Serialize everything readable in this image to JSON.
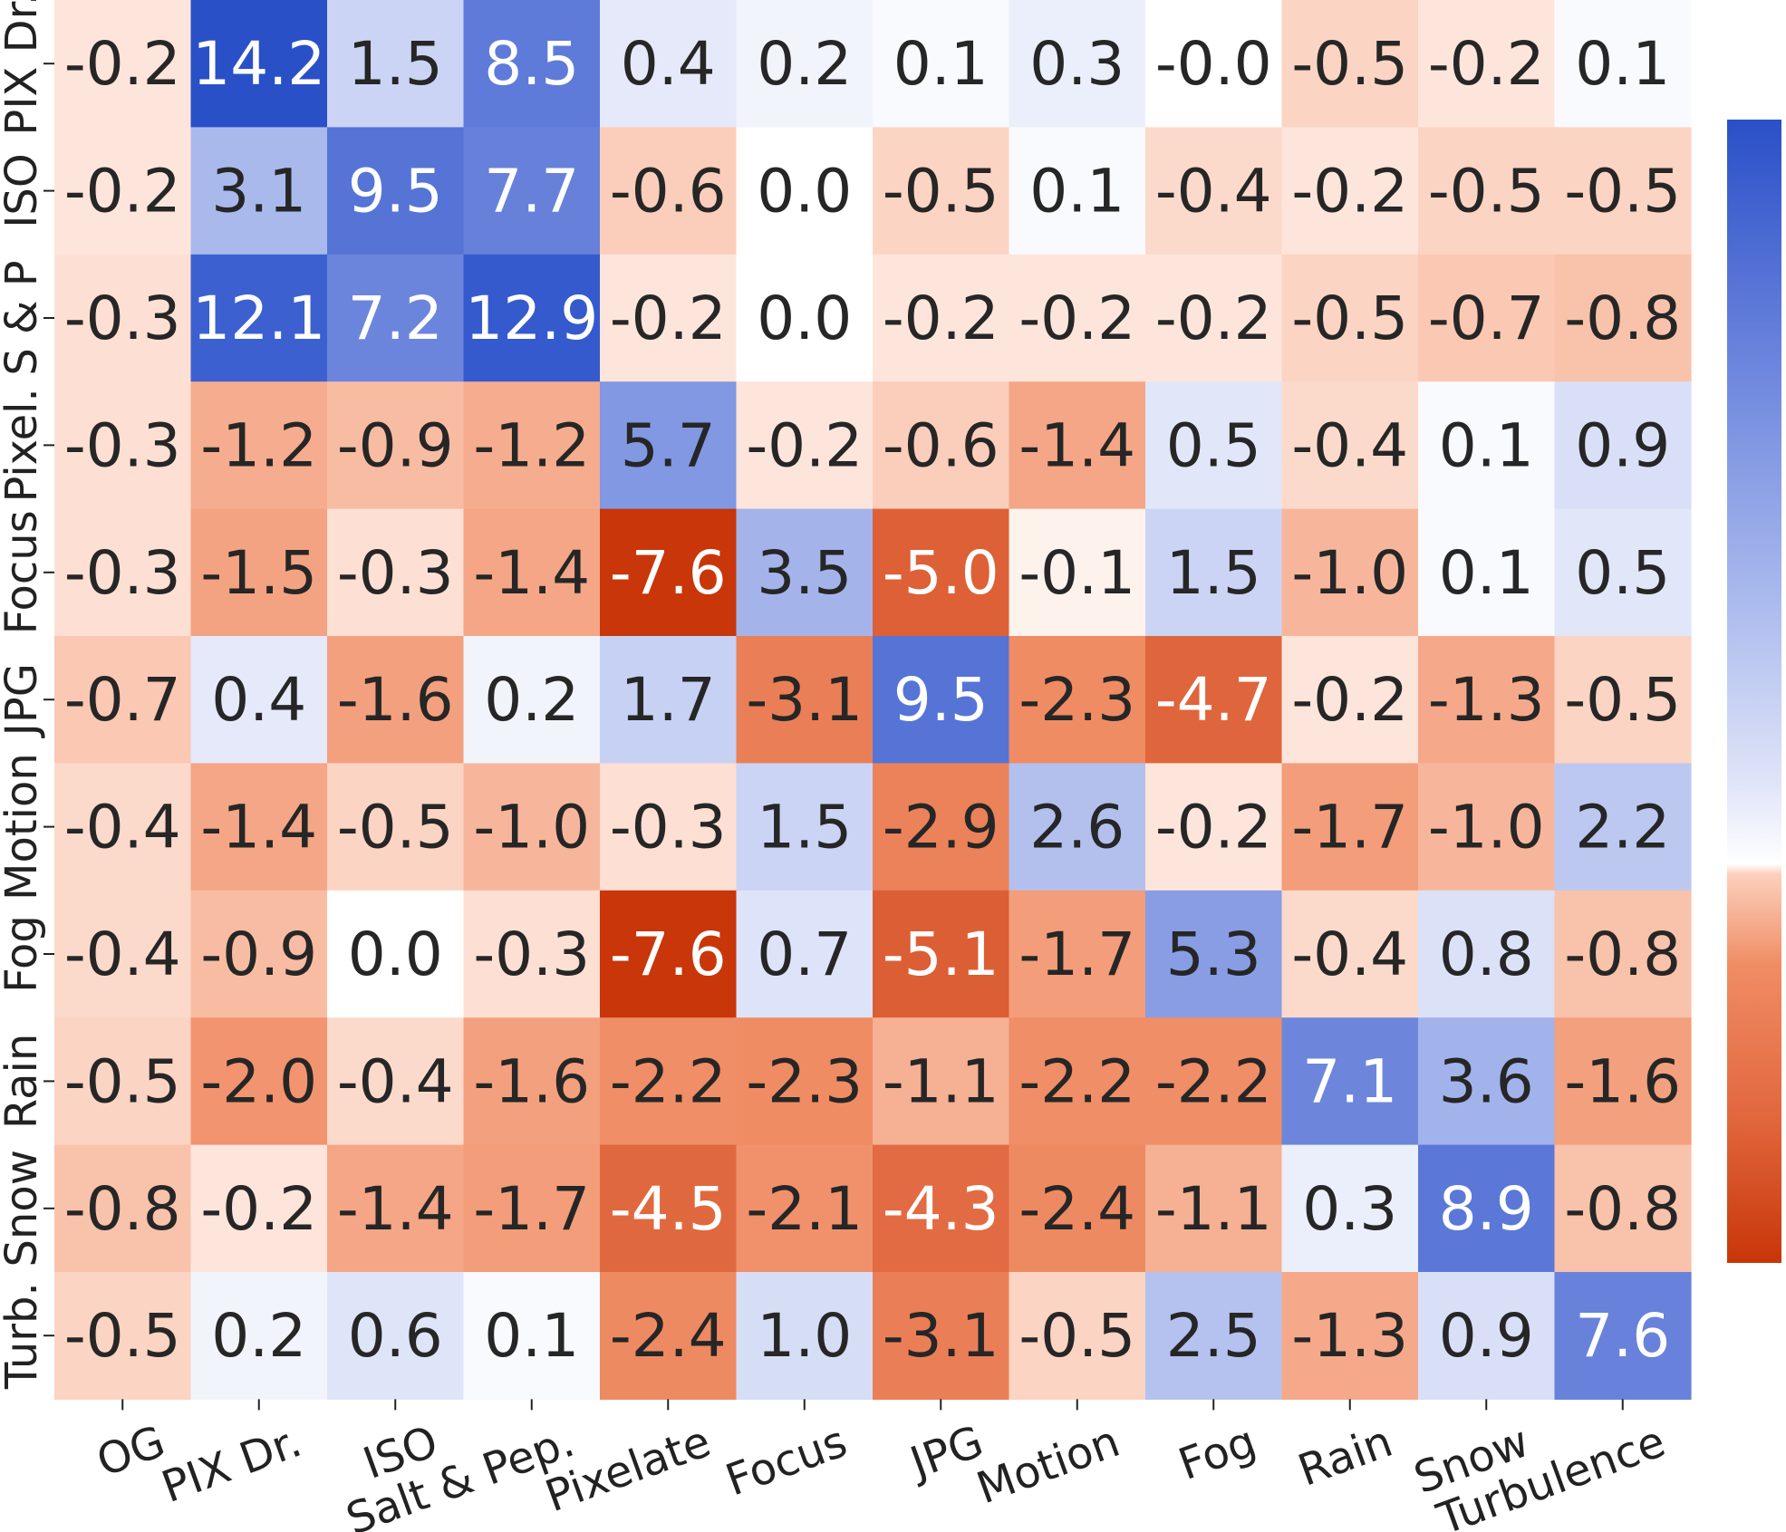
{
  "chart_data": {
    "type": "heatmap",
    "title": "",
    "xlabel": "",
    "ylabel": "",
    "x_categories": [
      "OG",
      "PIX Dr.",
      "ISO",
      "Salt & Pep.",
      "Pixelate",
      "Focus",
      "JPG",
      "Motion",
      "Fog",
      "Rain",
      "Snow",
      "Turbulence"
    ],
    "y_categories": [
      "PIX Dr.",
      "ISO",
      "S & P",
      "Pixel.",
      "Focus",
      "JPG",
      "Motion",
      "Fog",
      "Rain",
      "Snow",
      "Turb."
    ],
    "values": [
      [
        -0.2,
        14.2,
        1.5,
        8.5,
        0.4,
        0.2,
        0.1,
        0.3,
        -0.0,
        -0.5,
        -0.2,
        0.1
      ],
      [
        -0.2,
        3.1,
        9.5,
        7.7,
        -0.6,
        0.0,
        -0.5,
        0.1,
        -0.4,
        -0.2,
        -0.5,
        -0.5
      ],
      [
        -0.3,
        12.1,
        7.2,
        12.9,
        -0.2,
        0.0,
        -0.2,
        -0.2,
        -0.2,
        -0.5,
        -0.7,
        -0.8
      ],
      [
        -0.3,
        -1.2,
        -0.9,
        -1.2,
        5.7,
        -0.2,
        -0.6,
        -1.4,
        0.5,
        -0.4,
        0.1,
        0.9
      ],
      [
        -0.3,
        -1.5,
        -0.3,
        -1.4,
        -7.6,
        3.5,
        -5.0,
        -0.1,
        1.5,
        -1.0,
        0.1,
        0.5
      ],
      [
        -0.7,
        0.4,
        -1.6,
        0.2,
        1.7,
        -3.1,
        9.5,
        -2.3,
        -4.7,
        -0.2,
        -1.3,
        -0.5
      ],
      [
        -0.4,
        -1.4,
        -0.5,
        -1.0,
        -0.3,
        1.5,
        -2.9,
        2.6,
        -0.2,
        -1.7,
        -1.0,
        2.2
      ],
      [
        -0.4,
        -0.9,
        0.0,
        -0.3,
        -7.6,
        0.7,
        -5.1,
        -1.7,
        5.3,
        -0.4,
        0.8,
        -0.8
      ],
      [
        -0.5,
        -2.0,
        -0.4,
        -1.6,
        -2.2,
        -2.3,
        -1.1,
        -2.2,
        -2.2,
        7.1,
        3.6,
        -1.6
      ],
      [
        -0.8,
        -0.2,
        -1.4,
        -1.7,
        -4.5,
        -2.1,
        -4.3,
        -2.4,
        -1.1,
        0.3,
        8.9,
        -0.8
      ],
      [
        -0.5,
        0.2,
        0.6,
        0.1,
        -2.4,
        1.0,
        -3.1,
        -0.5,
        2.5,
        -1.3,
        0.9,
        7.6
      ]
    ],
    "value_labels": [
      [
        "-0.2",
        "14.2",
        "1.5",
        "8.5",
        "0.4",
        "0.2",
        "0.1",
        "0.3",
        "-0.0",
        "-0.5",
        "-0.2",
        "0.1"
      ],
      [
        "-0.2",
        "3.1",
        "9.5",
        "7.7",
        "-0.6",
        "0.0",
        "-0.5",
        "0.1",
        "-0.4",
        "-0.2",
        "-0.5",
        "-0.5"
      ],
      [
        "-0.3",
        "12.1",
        "7.2",
        "12.9",
        "-0.2",
        "0.0",
        "-0.2",
        "-0.2",
        "-0.2",
        "-0.5",
        "-0.7",
        "-0.8"
      ],
      [
        "-0.3",
        "-1.2",
        "-0.9",
        "-1.2",
        "5.7",
        "-0.2",
        "-0.6",
        "-1.4",
        "0.5",
        "-0.4",
        "0.1",
        "0.9"
      ],
      [
        "-0.3",
        "-1.5",
        "-0.3",
        "-1.4",
        "-7.6",
        "3.5",
        "-5.0",
        "-0.1",
        "1.5",
        "-1.0",
        "0.1",
        "0.5"
      ],
      [
        "-0.7",
        "0.4",
        "-1.6",
        "0.2",
        "1.7",
        "-3.1",
        "9.5",
        "-2.3",
        "-4.7",
        "-0.2",
        "-1.3",
        "-0.5"
      ],
      [
        "-0.4",
        "-1.4",
        "-0.5",
        "-1.0",
        "-0.3",
        "1.5",
        "-2.9",
        "2.6",
        "-0.2",
        "-1.7",
        "-1.0",
        "2.2"
      ],
      [
        "-0.4",
        "-0.9",
        "0.0",
        "-0.3",
        "-7.6",
        "0.7",
        "-5.1",
        "-1.7",
        "5.3",
        "-0.4",
        "0.8",
        "-0.8"
      ],
      [
        "-0.5",
        "-2.0",
        "-0.4",
        "-1.6",
        "-2.2",
        "-2.3",
        "-1.1",
        "-2.2",
        "-2.2",
        "7.1",
        "3.6",
        "-1.6"
      ],
      [
        "-0.8",
        "-0.2",
        "-1.4",
        "-1.7",
        "-4.5",
        "-2.1",
        "-4.3",
        "-2.4",
        "-1.1",
        "0.3",
        "8.9",
        "-0.8"
      ],
      [
        "-0.5",
        "0.2",
        "0.6",
        "0.1",
        "-2.4",
        "1.0",
        "-3.1",
        "-0.5",
        "2.5",
        "-1.3",
        "0.9",
        "7.6"
      ]
    ],
    "color_range": [
      -7.6,
      14.2
    ],
    "colormap": {
      "low": "#c8360a",
      "mid": "#ffffff",
      "high": "#2a50c8"
    },
    "colorbar": {
      "placement": "right",
      "tick_labels": false
    },
    "grid": false,
    "legend": "none"
  }
}
